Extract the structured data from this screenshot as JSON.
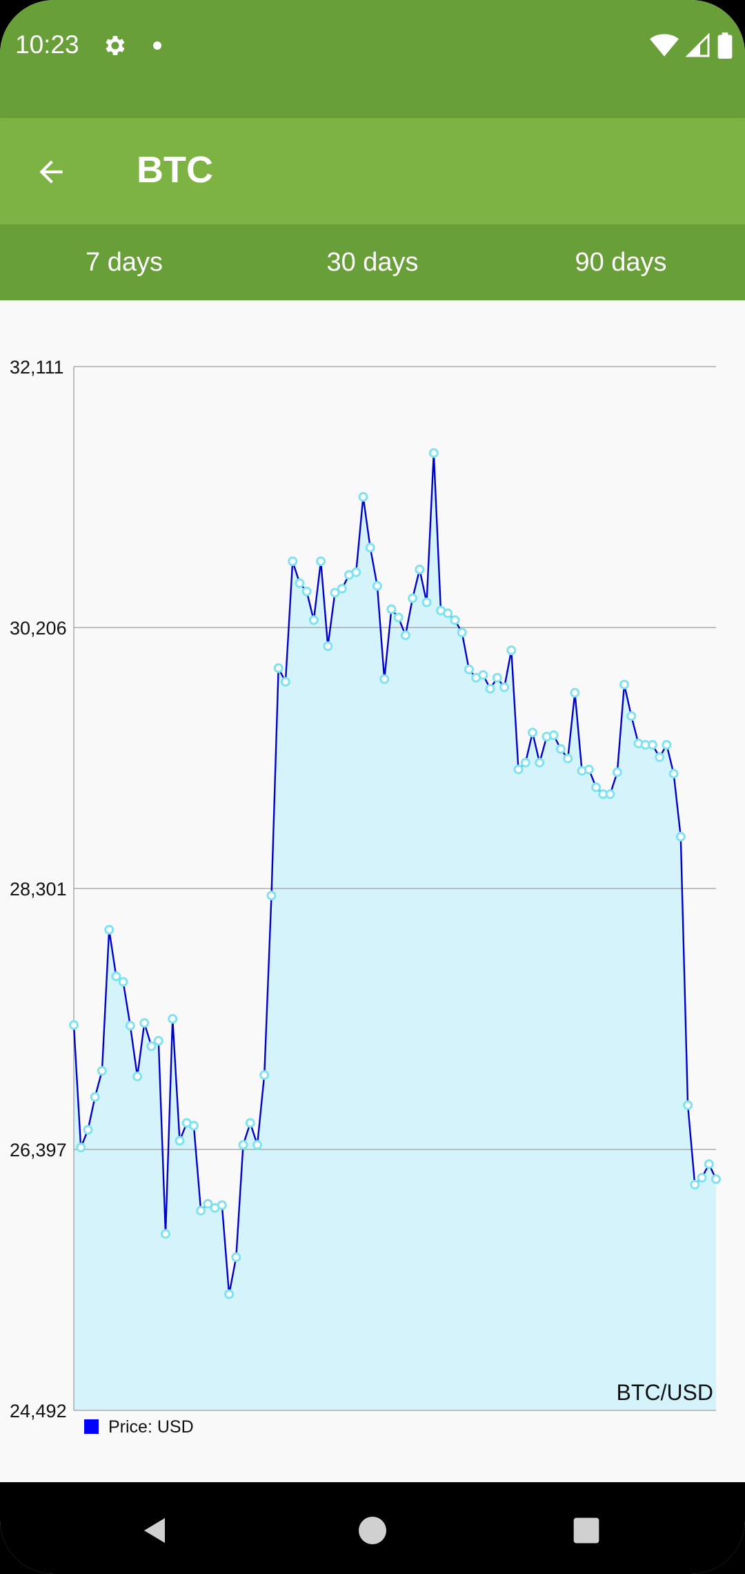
{
  "status_bar": {
    "time": "10:23",
    "icons": [
      "gear-icon",
      "notification-dot",
      "wifi-icon",
      "signal-icon",
      "battery-icon"
    ]
  },
  "app_bar": {
    "title": "BTC",
    "back_icon": "arrow-left-icon"
  },
  "tabs": [
    {
      "label": "7 days"
    },
    {
      "label": "30 days"
    },
    {
      "label": "90 days"
    }
  ],
  "colors": {
    "status_bar": "#689f38",
    "app_bar": "#7cb342",
    "tabs": "#689f38",
    "line": "#0000cc",
    "fill": "#d5f3fa",
    "marker": "#7fe3ef",
    "legend_swatch": "#0000ff"
  },
  "chart_data": {
    "type": "area",
    "corner_label": "BTC/USD",
    "y_ticks": [
      "32,111",
      "30,206",
      "28,301",
      "26,397",
      "24,492"
    ],
    "ylim": [
      24492,
      32111
    ],
    "grid": true,
    "legend_position": "bottom-left",
    "series": [
      {
        "name": "Price: USD",
        "values": [
          27305,
          26411,
          26540,
          26780,
          26970,
          28000,
          27660,
          27620,
          27300,
          26930,
          27320,
          27150,
          27190,
          25780,
          27350,
          26460,
          26590,
          26570,
          25950,
          26000,
          25970,
          25990,
          25340,
          25610,
          26430,
          26590,
          26430,
          26940,
          28250,
          29910,
          29810,
          30690,
          30530,
          30470,
          30260,
          30690,
          30070,
          30460,
          30490,
          30590,
          30610,
          31160,
          30790,
          30510,
          29830,
          30340,
          30280,
          30150,
          30420,
          30630,
          30390,
          31480,
          30330,
          30310,
          30260,
          30170,
          29900,
          29840,
          29860,
          29760,
          29840,
          29770,
          30040,
          29170,
          29220,
          29440,
          29220,
          29410,
          29420,
          29320,
          29250,
          29730,
          29160,
          29170,
          29040,
          28990,
          28990,
          29150,
          29790,
          29560,
          29360,
          29350,
          29350,
          29260,
          29350,
          29140,
          28680,
          26720,
          26140,
          26190,
          26290,
          26180
        ]
      }
    ]
  },
  "nav_bar": {
    "icons": [
      "back-triangle-icon",
      "home-circle-icon",
      "recents-square-icon"
    ]
  }
}
